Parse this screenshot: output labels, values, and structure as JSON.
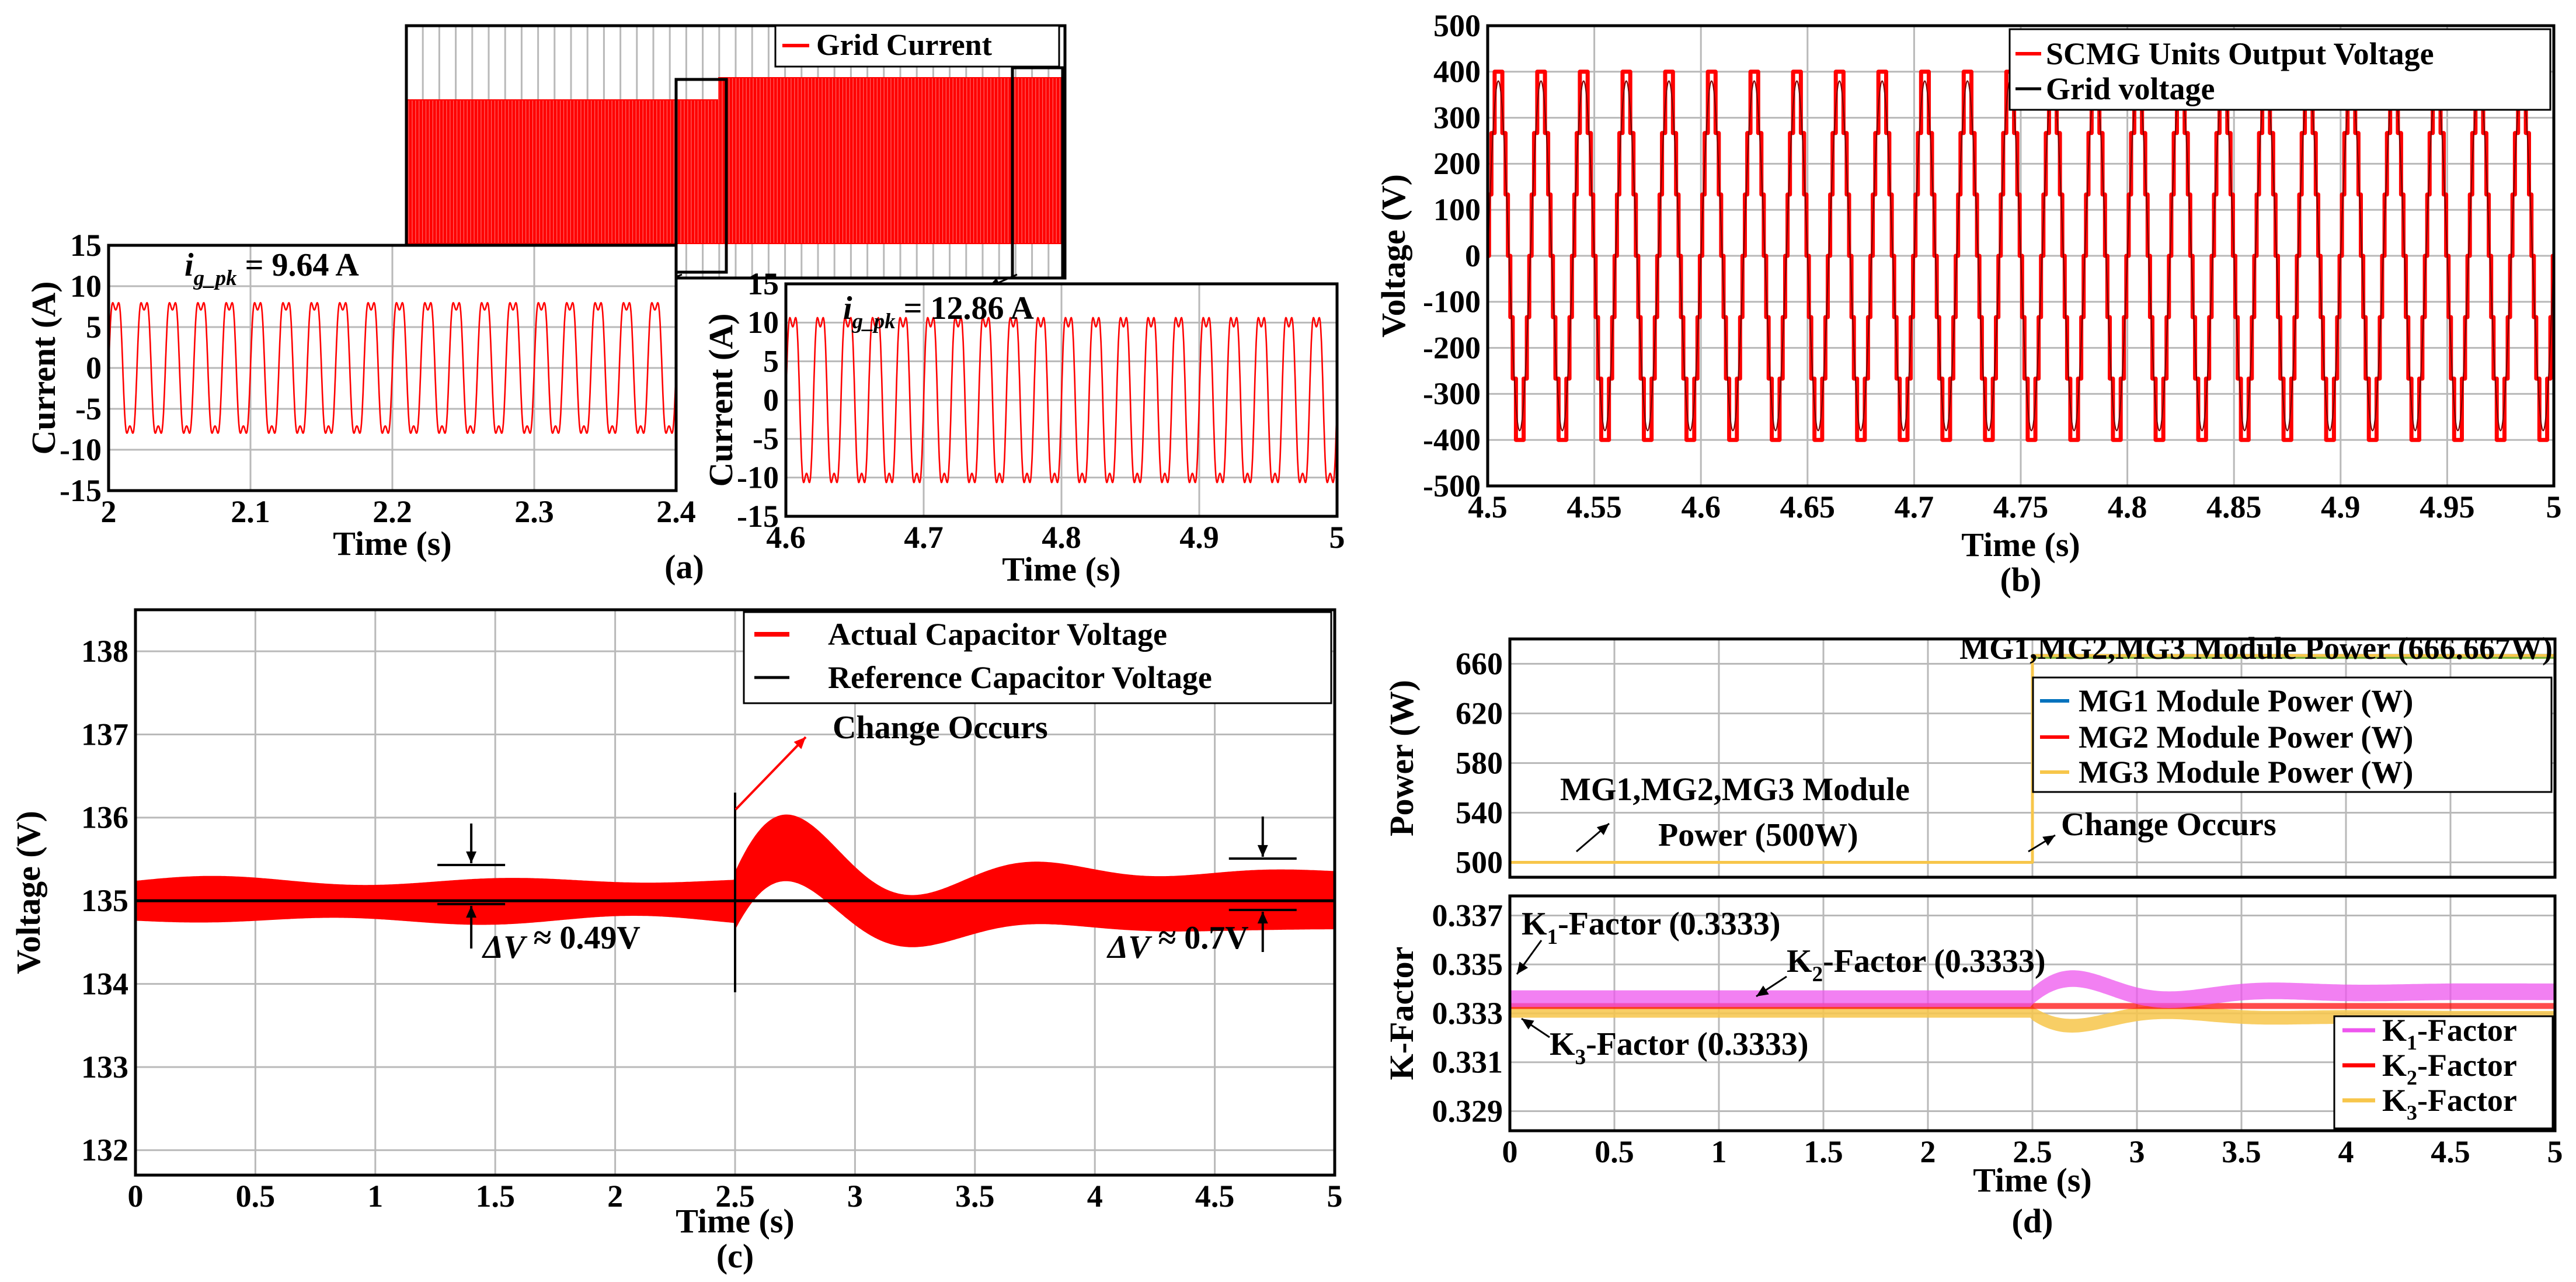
{
  "figure": {
    "panel_labels": [
      "(a)",
      "(b)",
      "(c)",
      "(d)"
    ]
  },
  "colors": {
    "red": "#ff0000",
    "black": "#000000",
    "blue": "#0072bd",
    "gold": "#f7c64a",
    "magenta": "#ee55ee",
    "grid": "#b9b9b9",
    "green": "#77ac30"
  },
  "chart_data": [
    {
      "id": "a_overview",
      "type": "line",
      "title": "",
      "legend": [
        "Grid Current"
      ],
      "note": "Envelope view of grid current over 0-5 s; amplitude steps from 9.64 A to 12.86 A at the change instant.",
      "series": [
        {
          "name": "Grid Current",
          "x_range": [
            0,
            5
          ],
          "peak_before": 9.64,
          "peak_after": 12.86,
          "change_at": 2.5
        }
      ]
    },
    {
      "id": "a_zoom1",
      "type": "line",
      "xlabel": "Time (s)",
      "ylabel": "Current (A)",
      "xlim": [
        2,
        2.4
      ],
      "ylim": [
        -15,
        15
      ],
      "xticks": [
        "2",
        "2.1",
        "2.2",
        "2.3",
        "2.4"
      ],
      "yticks": [
        "15",
        "10",
        "5",
        "0",
        "-5",
        "-10",
        "-15"
      ],
      "series": [
        {
          "name": "Grid Current",
          "frequency_hz": 50,
          "peak": 9.64
        }
      ],
      "annotation": {
        "lead": "i",
        "sub": "g_pk",
        "rest": " = 9.64 A"
      }
    },
    {
      "id": "a_zoom2",
      "type": "line",
      "xlabel": "Time (s)",
      "ylabel": "Current (A)",
      "xlim": [
        4.6,
        5
      ],
      "ylim": [
        -15,
        15
      ],
      "xticks": [
        "4.6",
        "4.7",
        "4.8",
        "4.9",
        "5"
      ],
      "yticks": [
        "15",
        "10",
        "5",
        "0",
        "-5",
        "-10",
        "-15"
      ],
      "series": [
        {
          "name": "Grid Current",
          "frequency_hz": 50,
          "peak": 12.86
        }
      ],
      "annotation": {
        "lead": "i",
        "sub": "g_pk",
        "rest": " = 12.86 A"
      }
    },
    {
      "id": "b",
      "type": "line",
      "xlabel": "Time (s)",
      "ylabel": "Voltage (V)",
      "xlim": [
        4.5,
        5
      ],
      "ylim": [
        -500,
        500
      ],
      "xticks": [
        "4.5",
        "4.55",
        "4.6",
        "4.65",
        "4.7",
        "4.75",
        "4.8",
        "4.85",
        "4.9",
        "4.95",
        "5"
      ],
      "yticks": [
        "500",
        "400",
        "300",
        "200",
        "100",
        "0",
        "-100",
        "-200",
        "-300",
        "-400",
        "-500"
      ],
      "legend": [
        "SCMG Units Output Voltage",
        "Grid voltage"
      ],
      "series": [
        {
          "name": "SCMG Units Output Voltage",
          "type": "staircase",
          "levels": [
            0,
            133.3,
            266.7,
            400
          ],
          "frequency_hz": 50
        },
        {
          "name": "Grid voltage",
          "frequency_hz": 50
        }
      ]
    },
    {
      "id": "c",
      "type": "line",
      "xlabel": "Time (s)",
      "ylabel": "Voltage (V)",
      "xlim": [
        0,
        5
      ],
      "ylim": [
        131.7,
        138.5
      ],
      "xticks": [
        "0",
        "0.5",
        "1",
        "1.5",
        "2",
        "2.5",
        "3",
        "3.5",
        "4",
        "4.5",
        "5"
      ],
      "yticks": [
        "138",
        "137",
        "136",
        "135",
        "134",
        "133",
        "132"
      ],
      "legend": [
        "Actual Capacitor Voltage",
        "Reference Capacitor Voltage"
      ],
      "series": [
        {
          "name": "Actual Capacitor Voltage",
          "mean": 135,
          "ripple_before": 0.49,
          "ripple_after": 0.7,
          "overshoot_peak": 136.1,
          "undershoot": 134.5
        },
        {
          "name": "Reference Capacitor Voltage",
          "value": 135
        }
      ],
      "annotations": {
        "change": "Change Occurs",
        "dv1_prefix": "ΔV",
        "dv1_suffix": " ≈ 0.49V",
        "dv2_prefix": "ΔV",
        "dv2_suffix": " ≈ 0.7V"
      }
    },
    {
      "id": "d_power",
      "type": "line",
      "ylabel": "Power (W)",
      "xlim": [
        0,
        5
      ],
      "ylim": [
        488,
        680
      ],
      "yticks": [
        "660",
        "620",
        "580",
        "540",
        "500"
      ],
      "legend": [
        "MG1 Module Power (W)",
        "MG2 Module Power (W)",
        "MG3 Module Power (W)"
      ],
      "series": [
        {
          "name": "MG1 Module Power (W)",
          "before": 500,
          "after": 666.667,
          "change_at": 2.5
        },
        {
          "name": "MG2 Module Power (W)",
          "before": 500,
          "after": 666.667,
          "change_at": 2.5
        },
        {
          "name": "MG3 Module Power (W)",
          "before": 500,
          "after": 666.667,
          "change_at": 2.5
        }
      ],
      "annotations": {
        "top": "MG1,MG2,MG3 Module Power (666.667W)",
        "bottom_line1": "MG1,MG2,MG3 Module",
        "bottom_line2": "Power (500W)",
        "change": "Change Occurs"
      }
    },
    {
      "id": "d_k",
      "type": "line",
      "xlabel": "Time (s)",
      "ylabel": "K-Factor",
      "xlim": [
        0,
        5
      ],
      "ylim": [
        0.3282,
        0.3378
      ],
      "xticks": [
        "0",
        "0.5",
        "1",
        "1.5",
        "2",
        "2.5",
        "3",
        "3.5",
        "4",
        "4.5",
        "5"
      ],
      "yticks": [
        "0.337",
        "0.335",
        "0.333",
        "0.331",
        "0.329"
      ],
      "legend": [
        {
          "lead": "K",
          "sub": "1",
          "rest": "-Factor"
        },
        {
          "lead": "K",
          "sub": "2",
          "rest": "-Factor"
        },
        {
          "lead": "K",
          "sub": "3",
          "rest": "-Factor"
        }
      ],
      "series": [
        {
          "name": "K1-Factor",
          "steady": 0.3333,
          "peak": 0.3348
        },
        {
          "name": "K2-Factor",
          "steady": 0.3333
        },
        {
          "name": "K3-Factor",
          "steady": 0.3333,
          "dip": 0.3323
        }
      ],
      "annotations": {
        "k1": {
          "lead": "K",
          "sub": "1",
          "rest": "-Factor (0.3333)"
        },
        "k2": {
          "lead": "K",
          "sub": "2",
          "rest": "-Factor (0.3333)"
        },
        "k3": {
          "lead": "K",
          "sub": "3",
          "rest": "-Factor (0.3333)"
        }
      }
    }
  ]
}
